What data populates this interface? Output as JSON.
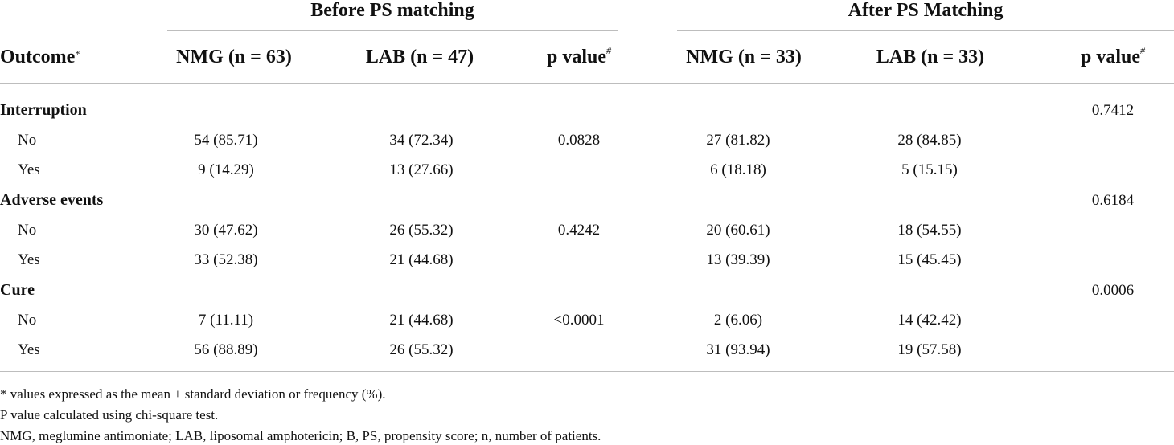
{
  "groups": {
    "before": "Before PS matching",
    "after": "After PS Matching"
  },
  "columns": {
    "outcome": "Outcome",
    "outcome_mark": "*",
    "nmg_before": "NMG (n = 63)",
    "lab_before": "LAB (n = 47)",
    "p_before": "p value",
    "nmg_after": "NMG (n = 33)",
    "lab_after": "LAB (n = 33)",
    "p_after": "p value",
    "p_mark": "#"
  },
  "sections": [
    {
      "label": "Interruption",
      "p_after": "0.7412",
      "rows": [
        {
          "label": "No",
          "nmg_before": "54 (85.71)",
          "lab_before": "34 (72.34)",
          "p_before": "0.0828",
          "nmg_after": "27 (81.82)",
          "lab_after": "28 (84.85)"
        },
        {
          "label": "Yes",
          "nmg_before": "9 (14.29)",
          "lab_before": "13 (27.66)",
          "p_before": "",
          "nmg_after": "6 (18.18)",
          "lab_after": "5 (15.15)"
        }
      ]
    },
    {
      "label": "Adverse events",
      "p_after": "0.6184",
      "rows": [
        {
          "label": "No",
          "nmg_before": "30 (47.62)",
          "lab_before": "26 (55.32)",
          "p_before": "0.4242",
          "nmg_after": "20 (60.61)",
          "lab_after": "18 (54.55)"
        },
        {
          "label": "Yes",
          "nmg_before": "33 (52.38)",
          "lab_before": "21 (44.68)",
          "p_before": "",
          "nmg_after": "13 (39.39)",
          "lab_after": "15 (45.45)"
        }
      ]
    },
    {
      "label": "Cure",
      "p_after": "0.0006",
      "rows": [
        {
          "label": "No",
          "nmg_before": "7 (11.11)",
          "lab_before": "21 (44.68)",
          "p_before": "<0.0001",
          "nmg_after": "2 (6.06)",
          "lab_after": "14 (42.42)"
        },
        {
          "label": "Yes",
          "nmg_before": "56 (88.89)",
          "lab_before": "26 (55.32)",
          "p_before": "",
          "nmg_after": "31 (93.94)",
          "lab_after": "19 (57.58)"
        }
      ]
    }
  ],
  "footnotes": [
    "* values expressed as the mean ± standard deviation or frequency (%).",
    "P value calculated using chi-square test.",
    "NMG, meglumine antimoniate; LAB, liposomal amphotericin; B, PS, propensity score; n, number of patients."
  ]
}
